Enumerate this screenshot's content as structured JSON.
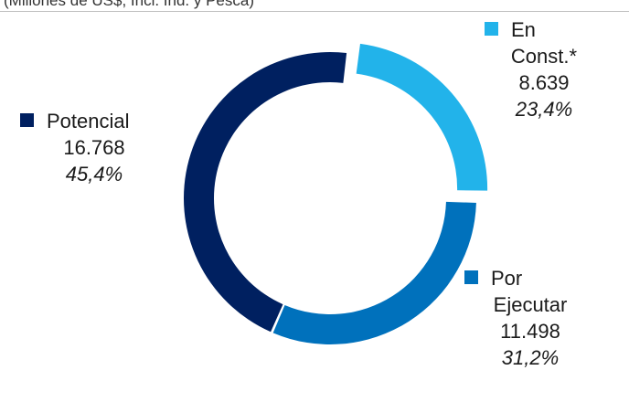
{
  "caption": "(Millones de US$, Incl. Ind. y Pesca)",
  "chart_data": {
    "type": "pie",
    "variant": "donut",
    "title": "",
    "start_angle_deg": 7,
    "slices": [
      {
        "name": "En Const.*",
        "name_line1": "En",
        "name_line2": "Const.*",
        "value": 8639,
        "value_label": "8.639",
        "pct_label": "23,4%",
        "color": "#22b3ea",
        "explode": 1
      },
      {
        "name": "Por Ejecutar",
        "name_line1": "Por",
        "name_line2": "Ejecutar",
        "value": 11498,
        "value_label": "11.498",
        "pct_label": "31,2%",
        "color": "#0071bc",
        "explode": 0
      },
      {
        "name": "Potencial",
        "name_line1": "Potencial",
        "name_line2": "",
        "value": 16768,
        "value_label": "16.768",
        "pct_label": "45,4%",
        "color": "#002060",
        "explode": 0
      }
    ]
  }
}
